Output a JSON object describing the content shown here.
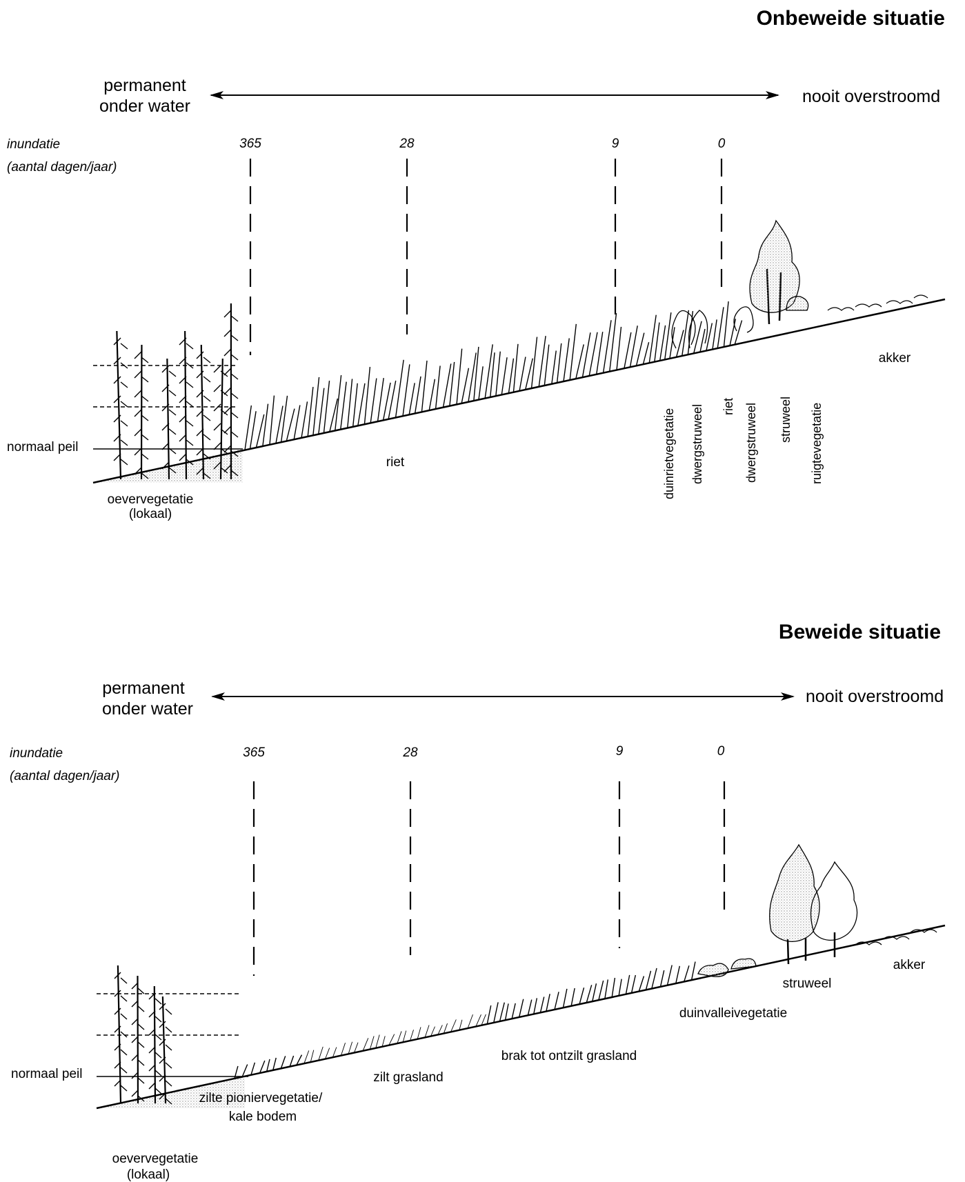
{
  "panels": [
    {
      "title": "Onbeweide situatie",
      "gradient_left": [
        "permanent",
        "onder water"
      ],
      "gradient_right": "nooit overstroomd",
      "inundation_label": [
        "inundatie",
        "(aantal dagen/jaar)"
      ],
      "inundation_marks": [
        "365",
        "28",
        "9",
        "0"
      ],
      "water_level_label": "normaal peil",
      "zones": [
        {
          "name": "oevervegetatie (lokaal)",
          "lines": [
            "oevervegetatie",
            "(lokaal)"
          ]
        },
        {
          "name": "riet",
          "lines": [
            "riet"
          ]
        },
        {
          "name": "akker",
          "lines": [
            "akker"
          ]
        }
      ],
      "vertical_zones": [
        "duinrietvegetatie",
        "dwergstruweel",
        "riet",
        "dwergstruweel",
        "struweel",
        "ruigtevegetatie"
      ]
    },
    {
      "title": "Beweide situatie",
      "gradient_left": [
        "permanent",
        "onder water"
      ],
      "gradient_right": "nooit overstroomd",
      "inundation_label": [
        "inundatie",
        "(aantal dagen/jaar)"
      ],
      "inundation_marks": [
        "365",
        "28",
        "9",
        "0"
      ],
      "water_level_label": "normaal peil",
      "zones": [
        {
          "name": "oevervegetatie (lokaal)",
          "lines": [
            "oevervegetatie",
            "(lokaal)"
          ]
        },
        {
          "name": "zilte pioniervegetatie/ kale bodem",
          "lines": [
            "zilte pioniervegetatie/",
            "kale bodem"
          ]
        },
        {
          "name": "zilt grasland",
          "lines": [
            "zilt grasland"
          ]
        },
        {
          "name": "brak tot ontzilt grasland",
          "lines": [
            "brak tot ontzilt grasland"
          ]
        },
        {
          "name": "duinvalleivegetatie",
          "lines": [
            "duinvalleivegetatie"
          ]
        },
        {
          "name": "struweel",
          "lines": [
            "struweel"
          ]
        },
        {
          "name": "akker",
          "lines": [
            "akker"
          ]
        }
      ]
    }
  ],
  "colors": {
    "ink": "#000000",
    "stipple": "#9a9a9a",
    "background": "#ffffff"
  }
}
